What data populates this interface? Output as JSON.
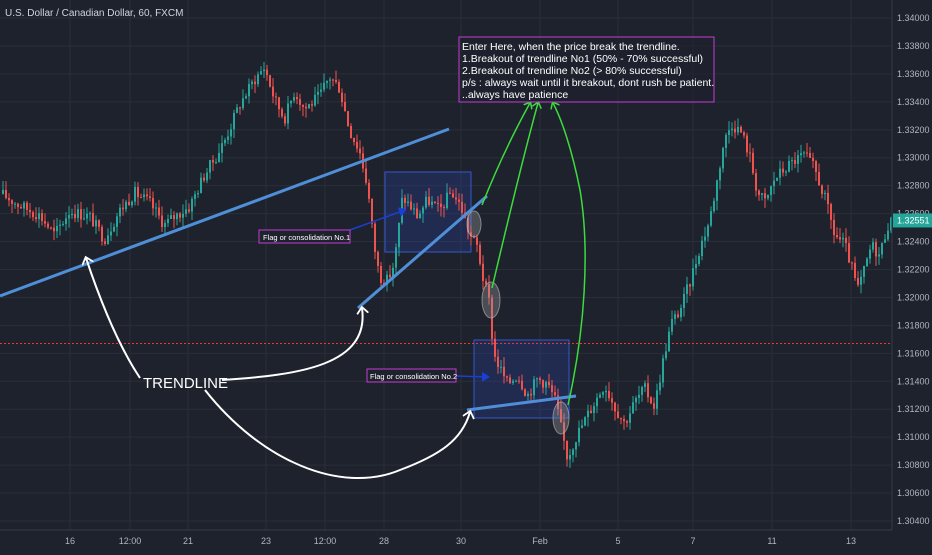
{
  "symbol_title": "U.S. Dollar / Canadian Dollar, 60, FXCM",
  "colors": {
    "background": "#1e222d",
    "up": "#26a69a",
    "down": "#ef5350",
    "trendline": "#4f8fd8",
    "arrow_green": "#3ddc3d",
    "arrow_blue": "#1a3fd6",
    "arrow_white": "#ffffff",
    "annotation_border": "#c53bd4",
    "horizontal_line": "#e53935",
    "price_tag": "#26a69a"
  },
  "annotations": {
    "main_note": [
      "Enter Here, when the price break the trendline.",
      "1.Breakout of trendline No1 (50% - 70% successful)",
      "2.Breakout of trendline No2 (> 80% successful)",
      "p/s : always wait until it breakout, dont rush be patient.",
      "..always have patience"
    ],
    "flag1_label": "Flag or consolidation No.1",
    "flag2_label": "Flag or consolidation No.2",
    "trendline_label": "TRENDLINE"
  },
  "chart_data": {
    "type": "candlestick",
    "title": "U.S. Dollar / Canadian Dollar, 60, FXCM",
    "x_tick_labels": [
      "16",
      "12:00",
      "21",
      "23",
      "12:00",
      "28",
      "30",
      "Feb",
      "5",
      "7",
      "11",
      "13"
    ],
    "y_tick_labels": [
      "1.34000",
      "1.33800",
      "1.33600",
      "1.33400",
      "1.33200",
      "1.33000",
      "1.32800",
      "1.32600",
      "1.32400",
      "1.32200",
      "1.32000",
      "1.31800",
      "1.31600",
      "1.31400",
      "1.31200",
      "1.31000",
      "1.30800",
      "1.30600",
      "1.30400"
    ],
    "ylim": [
      1.304,
      1.34
    ],
    "current_price": "1.32551",
    "current_price_value": 1.32551,
    "horizontal_level": 1.3167,
    "price_path": [
      [
        0,
        1.3275
      ],
      [
        20,
        1.3266
      ],
      [
        40,
        1.3259
      ],
      [
        55,
        1.3245
      ],
      [
        70,
        1.3262
      ],
      [
        90,
        1.3258
      ],
      [
        105,
        1.3242
      ],
      [
        120,
        1.3262
      ],
      [
        135,
        1.3275
      ],
      [
        150,
        1.3268
      ],
      [
        165,
        1.3252
      ],
      [
        175,
        1.3258
      ],
      [
        190,
        1.3265
      ],
      [
        205,
        1.3288
      ],
      [
        215,
        1.3299
      ],
      [
        225,
        1.3312
      ],
      [
        240,
        1.3338
      ],
      [
        255,
        1.3356
      ],
      [
        265,
        1.3365
      ],
      [
        275,
        1.3342
      ],
      [
        285,
        1.3328
      ],
      [
        295,
        1.3348
      ],
      [
        305,
        1.3335
      ],
      [
        320,
        1.3344
      ],
      [
        330,
        1.3358
      ],
      [
        340,
        1.335
      ],
      [
        350,
        1.332
      ],
      [
        360,
        1.3305
      ],
      [
        368,
        1.328
      ],
      [
        374,
        1.324
      ],
      [
        380,
        1.3215
      ],
      [
        388,
        1.3212
      ],
      [
        395,
        1.3225
      ],
      [
        403,
        1.3272
      ],
      [
        410,
        1.3266
      ],
      [
        418,
        1.3258
      ],
      [
        428,
        1.327
      ],
      [
        440,
        1.3262
      ],
      [
        452,
        1.3276
      ],
      [
        462,
        1.3264
      ],
      [
        470,
        1.3245
      ],
      [
        478,
        1.3236
      ],
      [
        484,
        1.3212
      ],
      [
        490,
        1.3196
      ],
      [
        494,
        1.316
      ],
      [
        500,
        1.315
      ],
      [
        508,
        1.3138
      ],
      [
        518,
        1.3145
      ],
      [
        528,
        1.313
      ],
      [
        538,
        1.3142
      ],
      [
        548,
        1.3138
      ],
      [
        556,
        1.3126
      ],
      [
        562,
        1.3105
      ],
      [
        568,
        1.3085
      ],
      [
        575,
        1.3098
      ],
      [
        585,
        1.3112
      ],
      [
        595,
        1.3125
      ],
      [
        605,
        1.3138
      ],
      [
        615,
        1.3122
      ],
      [
        625,
        1.311
      ],
      [
        635,
        1.3125
      ],
      [
        645,
        1.3135
      ],
      [
        655,
        1.3122
      ],
      [
        665,
        1.316
      ],
      [
        672,
        1.3182
      ],
      [
        680,
        1.319
      ],
      [
        690,
        1.321
      ],
      [
        700,
        1.3235
      ],
      [
        710,
        1.3255
      ],
      [
        718,
        1.3285
      ],
      [
        724,
        1.331
      ],
      [
        732,
        1.3325
      ],
      [
        742,
        1.3318
      ],
      [
        750,
        1.3302
      ],
      [
        758,
        1.3275
      ],
      [
        766,
        1.3268
      ],
      [
        775,
        1.3285
      ],
      [
        785,
        1.3292
      ],
      [
        795,
        1.3298
      ],
      [
        805,
        1.3302
      ],
      [
        815,
        1.3292
      ],
      [
        825,
        1.3272
      ],
      [
        835,
        1.3245
      ],
      [
        845,
        1.3238
      ],
      [
        852,
        1.3222
      ],
      [
        858,
        1.3205
      ],
      [
        866,
        1.3222
      ],
      [
        872,
        1.3238
      ],
      [
        880,
        1.323
      ],
      [
        888,
        1.3252
      ],
      [
        895,
        1.3255
      ]
    ]
  }
}
